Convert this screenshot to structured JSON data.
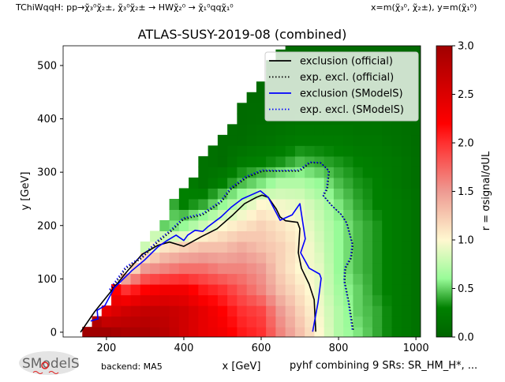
{
  "header": {
    "topology": "TChiWqqH: pp→χ̃₃⁰χ̃₂±, χ̃₃⁰χ̃₂± → HWχ̃₂⁰ → χ̃₁⁰qqχ̃₁⁰",
    "axes_definition": "x=m(χ̃₃⁰, χ̃₂±), y=m(χ̃₁⁰)"
  },
  "footer": {
    "backend": "backend: MA5",
    "combination": "pyhf combining 9 SRs: SR_HM_H*, ...",
    "logo_text": "SModelS"
  },
  "chart_data": {
    "type": "heatmap",
    "title": "ATLAS-SUSY-2019-08 (combined)",
    "xlabel": "x [GeV]",
    "ylabel": "y [GeV]",
    "xlim": [
      88,
      1012
    ],
    "ylim": [
      -9,
      537
    ],
    "xticks": [
      "200",
      "400",
      "600",
      "800",
      "1000"
    ],
    "yticks": [
      "0",
      "100",
      "200",
      "300",
      "400",
      "500"
    ],
    "grid": false,
    "colorbar": {
      "label": "r = σsignal/σUL",
      "range": [
        0,
        3
      ],
      "ticks": [
        "0.0",
        "0.5",
        "1.0",
        "1.5",
        "2.0",
        "2.5",
        "3.0"
      ],
      "colormap": [
        [
          0.0,
          "#006400"
        ],
        [
          0.3,
          "#008000"
        ],
        [
          0.6,
          "#98fb98"
        ],
        [
          1.0,
          "#fff8d0"
        ],
        [
          1.5,
          "#ee9a92"
        ],
        [
          2.0,
          "#ff3030"
        ],
        [
          2.2,
          "#ff0000"
        ],
        [
          3.0,
          "#a00000"
        ]
      ]
    },
    "heatmap": {
      "x": [
        150,
        200,
        250,
        300,
        350,
        400,
        450,
        500,
        550,
        600,
        650,
        700,
        750,
        800,
        850,
        900,
        950,
        1000
      ],
      "y": [
        0,
        40,
        80,
        120,
        160,
        200,
        240,
        280,
        320,
        360,
        400,
        440,
        480,
        520
      ],
      "r_by_column": [
        [
          3.0
        ],
        [
          3.0,
          2.4
        ],
        [
          2.9,
          2.6,
          2.0,
          0.9
        ],
        [
          2.9,
          2.7,
          2.2,
          1.5,
          0.8
        ],
        [
          2.8,
          2.7,
          2.3,
          1.6,
          1.1,
          0.5
        ],
        [
          2.6,
          2.6,
          2.3,
          1.7,
          1.2,
          0.6,
          0.3
        ],
        [
          2.4,
          2.4,
          2.1,
          1.7,
          1.3,
          0.8,
          0.4,
          0.15
        ],
        [
          2.3,
          2.2,
          2.0,
          1.6,
          1.3,
          1.0,
          0.6,
          0.3,
          0.1
        ],
        [
          2.1,
          2.0,
          1.8,
          1.6,
          1.4,
          1.1,
          0.8,
          0.45,
          0.25,
          0.1,
          0.08
        ],
        [
          2.0,
          1.9,
          1.6,
          1.5,
          1.3,
          1.2,
          1.0,
          0.55,
          0.3,
          0.15,
          0.1,
          0.08
        ],
        [
          1.6,
          1.5,
          1.3,
          1.2,
          1.2,
          1.1,
          0.95,
          0.7,
          0.35,
          0.2,
          0.12,
          0.1,
          0.08,
          0.06
        ],
        [
          1.3,
          1.2,
          1.1,
          1.0,
          1.05,
          1.0,
          0.9,
          0.7,
          0.45,
          0.25,
          0.15,
          0.1,
          0.08,
          0.06
        ],
        [
          1.0,
          0.95,
          0.9,
          0.9,
          0.85,
          0.8,
          0.75,
          0.6,
          0.4,
          0.25,
          0.15,
          0.1,
          0.08,
          0.06
        ],
        [
          0.7,
          0.7,
          0.65,
          0.6,
          0.6,
          0.6,
          0.55,
          0.45,
          0.35,
          0.25,
          0.15,
          0.1,
          0.08,
          0.06
        ],
        [
          0.55,
          0.5,
          0.5,
          0.45,
          0.45,
          0.45,
          0.4,
          0.35,
          0.3,
          0.2,
          0.15,
          0.1,
          0.08,
          0.06
        ],
        [
          0.4,
          0.4,
          0.35,
          0.35,
          0.35,
          0.35,
          0.3,
          0.3,
          0.25,
          0.2,
          0.15,
          0.1,
          0.08,
          0.06
        ],
        [
          0.25,
          0.25,
          0.25,
          0.25,
          0.25,
          0.25,
          0.25,
          0.2,
          0.2,
          0.15,
          0.12,
          0.1,
          0.08,
          0.06
        ],
        [
          0.15,
          0.15,
          0.15,
          0.15,
          0.15,
          0.15,
          0.15,
          0.12,
          0.12,
          0.1,
          0.1,
          0.08,
          0.06,
          0.05
        ]
      ]
    },
    "legend_position": "upper-right",
    "series": [
      {
        "name": "exclusion (official)",
        "color": "#000000",
        "style": "solid",
        "points": [
          [
            133,
            0
          ],
          [
            169,
            38
          ],
          [
            210,
            75
          ],
          [
            251,
            112
          ],
          [
            292,
            146
          ],
          [
            333,
            163
          ],
          [
            363,
            169
          ],
          [
            400,
            161
          ],
          [
            445,
            179
          ],
          [
            486,
            194
          ],
          [
            527,
            220
          ],
          [
            557,
            241
          ],
          [
            588,
            253
          ],
          [
            602,
            257
          ],
          [
            618,
            253
          ],
          [
            639,
            231
          ],
          [
            649,
            216
          ],
          [
            663,
            209
          ],
          [
            694,
            206
          ],
          [
            700,
            194
          ],
          [
            696,
            149
          ],
          [
            704,
            120
          ],
          [
            724,
            90
          ],
          [
            737,
            61
          ],
          [
            741,
            1
          ]
        ]
      },
      {
        "name": "exp. excl. (official)",
        "color": "#000000",
        "style": "dotted",
        "points": [
          [
            210,
            78
          ],
          [
            251,
            120
          ],
          [
            292,
            139
          ],
          [
            333,
            169
          ],
          [
            367,
            189
          ],
          [
            400,
            212
          ],
          [
            449,
            220
          ],
          [
            496,
            243
          ],
          [
            522,
            268
          ],
          [
            563,
            290
          ],
          [
            604,
            302
          ],
          [
            645,
            302
          ],
          [
            700,
            302
          ],
          [
            727,
            318
          ],
          [
            755,
            317
          ],
          [
            776,
            302
          ],
          [
            771,
            268
          ],
          [
            761,
            256
          ],
          [
            782,
            238
          ],
          [
            808,
            220
          ],
          [
            822,
            204
          ],
          [
            837,
            164
          ],
          [
            833,
            139
          ],
          [
            818,
            120
          ],
          [
            816,
            95
          ],
          [
            827,
            56
          ],
          [
            839,
            1
          ]
        ]
      },
      {
        "name": "exclusion (SModelS)",
        "color": "#0000ff",
        "style": "solid",
        "points": [
          [
            159,
            21
          ],
          [
            178,
            25
          ],
          [
            176,
            41
          ],
          [
            196,
            50
          ],
          [
            220,
            83
          ],
          [
            265,
            115
          ],
          [
            298,
            135
          ],
          [
            333,
            160
          ],
          [
            357,
            172
          ],
          [
            380,
            182
          ],
          [
            400,
            172
          ],
          [
            410,
            182
          ],
          [
            429,
            191
          ],
          [
            449,
            189
          ],
          [
            461,
            197
          ],
          [
            496,
            216
          ],
          [
            522,
            234
          ],
          [
            551,
            250
          ],
          [
            598,
            265
          ],
          [
            618,
            253
          ],
          [
            649,
            210
          ],
          [
            680,
            220
          ],
          [
            700,
            241
          ],
          [
            714,
            175
          ],
          [
            702,
            149
          ],
          [
            724,
            120
          ],
          [
            751,
            109
          ],
          [
            755,
            101
          ],
          [
            747,
            56
          ],
          [
            733,
            1
          ]
        ]
      },
      {
        "name": "exp. excl. (SModelS)",
        "color": "#0000ff",
        "style": "dotted",
        "points": [
          [
            208,
            80
          ],
          [
            249,
            122
          ],
          [
            290,
            141
          ],
          [
            331,
            171
          ],
          [
            365,
            191
          ],
          [
            398,
            214
          ],
          [
            447,
            222
          ],
          [
            494,
            245
          ],
          [
            520,
            270
          ],
          [
            561,
            292
          ],
          [
            602,
            304
          ],
          [
            643,
            303
          ],
          [
            698,
            304
          ],
          [
            725,
            319
          ],
          [
            753,
            318
          ],
          [
            774,
            303
          ],
          [
            769,
            269
          ],
          [
            759,
            257
          ],
          [
            780,
            239
          ],
          [
            806,
            221
          ],
          [
            820,
            205
          ],
          [
            835,
            165
          ],
          [
            831,
            140
          ],
          [
            816,
            121
          ],
          [
            814,
            96
          ],
          [
            825,
            57
          ],
          [
            836,
            2
          ]
        ]
      }
    ]
  }
}
